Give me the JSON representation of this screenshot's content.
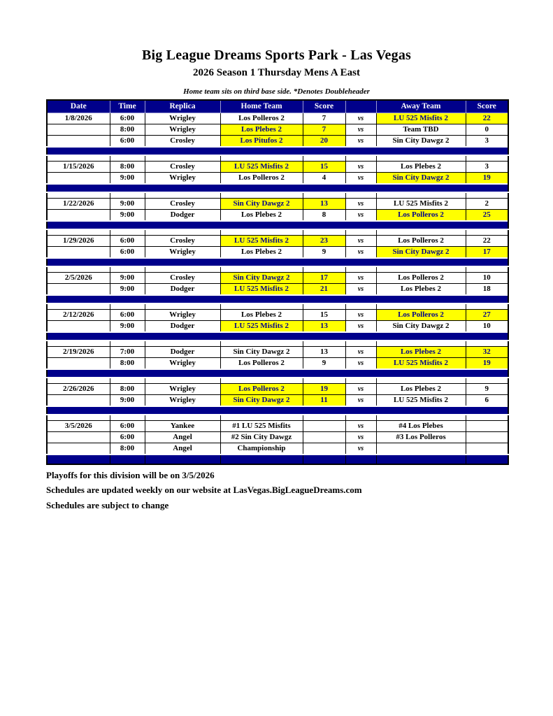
{
  "page": {
    "title": "Big League Dreams Sports Park - Las Vegas",
    "subtitle": "2026 Season 1 Thursday Mens A East",
    "note": "Home team sits on third base side.  *Denotes Doubleheader",
    "footer_lines": [
      "Playoffs for this division will be on 3/5/2026",
      "Schedules are updated weekly on our website at LasVegas.BigLeagueDreams.com",
      "Schedules are subject to change"
    ]
  },
  "colors": {
    "navy": "#00008B",
    "highlight_yellow": "#FFFF00",
    "highlight_text": "#00008B",
    "body_text": "#000000",
    "header_text": "#FFFFFF"
  },
  "table": {
    "headers": [
      "Date",
      "Time",
      "Replica",
      "Home Team",
      "Score",
      "",
      "Away Team",
      "Score"
    ],
    "vs_label": "vs",
    "blocks": [
      {
        "date": "1/8/2026",
        "games": [
          {
            "time": "6:00",
            "replica": "Wrigley",
            "home": "Los Polleros 2",
            "home_score": "7",
            "away": "LU 525 Misfits 2",
            "away_score": "22",
            "highlight": "away"
          },
          {
            "time": "8:00",
            "replica": "Wrigley",
            "home": "Los Plebes 2",
            "home_score": "7",
            "away": "Team TBD",
            "away_score": "0",
            "highlight": "home"
          },
          {
            "time": "6:00",
            "replica": "Crosley",
            "home": "Los Pitufos 2",
            "home_score": "20",
            "away": "Sin City Dawgz 2",
            "away_score": "3",
            "highlight": "home"
          }
        ]
      },
      {
        "date": "1/15/2026",
        "games": [
          {
            "time": "8:00",
            "replica": "Crosley",
            "home": "LU 525 Misfits 2",
            "home_score": "15",
            "away": "Los Plebes 2",
            "away_score": "3",
            "highlight": "home"
          },
          {
            "time": "9:00",
            "replica": "Wrigley",
            "home": "Los Polleros 2",
            "home_score": "4",
            "away": "Sin City Dawgz 2",
            "away_score": "19",
            "highlight": "away"
          }
        ]
      },
      {
        "date": "1/22/2026",
        "games": [
          {
            "time": "9:00",
            "replica": "Crosley",
            "home": "Sin City Dawgz 2",
            "home_score": "13",
            "away": "LU 525 Misfits 2",
            "away_score": "2",
            "highlight": "home"
          },
          {
            "time": "9:00",
            "replica": "Dodger",
            "home": "Los Plebes 2",
            "home_score": "8",
            "away": "Los Polleros 2",
            "away_score": "25",
            "highlight": "away"
          }
        ]
      },
      {
        "date": "1/29/2026",
        "games": [
          {
            "time": "6:00",
            "replica": "Crosley",
            "home": "LU 525 Misfits 2",
            "home_score": "23",
            "away": "Los Polleros 2",
            "away_score": "22",
            "highlight": "home"
          },
          {
            "time": "6:00",
            "replica": "Wrigley",
            "home": "Los Plebes 2",
            "home_score": "9",
            "away": "Sin City Dawgz 2",
            "away_score": "17",
            "highlight": "away"
          }
        ]
      },
      {
        "date": "2/5/2026",
        "games": [
          {
            "time": "9:00",
            "replica": "Crosley",
            "home": "Sin City Dawgz 2",
            "home_score": "17",
            "away": "Los Polleros 2",
            "away_score": "10",
            "highlight": "home"
          },
          {
            "time": "9:00",
            "replica": "Dodger",
            "home": "LU 525 Misfits 2",
            "home_score": "21",
            "away": "Los Plebes 2",
            "away_score": "18",
            "highlight": "home"
          }
        ]
      },
      {
        "date": "2/12/2026",
        "games": [
          {
            "time": "6:00",
            "replica": "Wrigley",
            "home": "Los Plebes 2",
            "home_score": "15",
            "away": "Los Polleros 2",
            "away_score": "27",
            "highlight": "away"
          },
          {
            "time": "9:00",
            "replica": "Dodger",
            "home": "LU 525 Misfits 2",
            "home_score": "13",
            "away": "Sin City Dawgz 2",
            "away_score": "10",
            "highlight": "home"
          }
        ]
      },
      {
        "date": "2/19/2026",
        "games": [
          {
            "time": "7:00",
            "replica": "Dodger",
            "home": "Sin City Dawgz 2",
            "home_score": "13",
            "away": "Los Plebes 2",
            "away_score": "32",
            "highlight": "away"
          },
          {
            "time": "8:00",
            "replica": "Wrigley",
            "home": "Los Polleros 2",
            "home_score": "9",
            "away": "LU 525 Misfits 2",
            "away_score": "19",
            "highlight": "away"
          }
        ]
      },
      {
        "date": "2/26/2026",
        "games": [
          {
            "time": "8:00",
            "replica": "Wrigley",
            "home": "Los Polleros 2",
            "home_score": "19",
            "away": "Los Plebes 2",
            "away_score": "9",
            "highlight": "home"
          },
          {
            "time": "9:00",
            "replica": "Wrigley",
            "home": "Sin City Dawgz 2",
            "home_score": "11",
            "away": "LU 525 Misfits 2",
            "away_score": "6",
            "highlight": "home"
          }
        ]
      },
      {
        "date": "3/5/2026",
        "games": [
          {
            "time": "6:00",
            "replica": "Yankee",
            "home": "#1 LU 525 Misfits",
            "home_score": "",
            "away": "#4 Los Plebes",
            "away_score": "",
            "highlight": "none"
          },
          {
            "time": "6:00",
            "replica": "Angel",
            "home": "#2 Sin City Dawgz",
            "home_score": "",
            "away": "#3 Los Polleros",
            "away_score": "",
            "highlight": "none"
          },
          {
            "time": "8:00",
            "replica": "Angel",
            "home": "Championship",
            "home_score": "",
            "away": "",
            "away_score": "",
            "highlight": "none"
          }
        ]
      }
    ]
  }
}
